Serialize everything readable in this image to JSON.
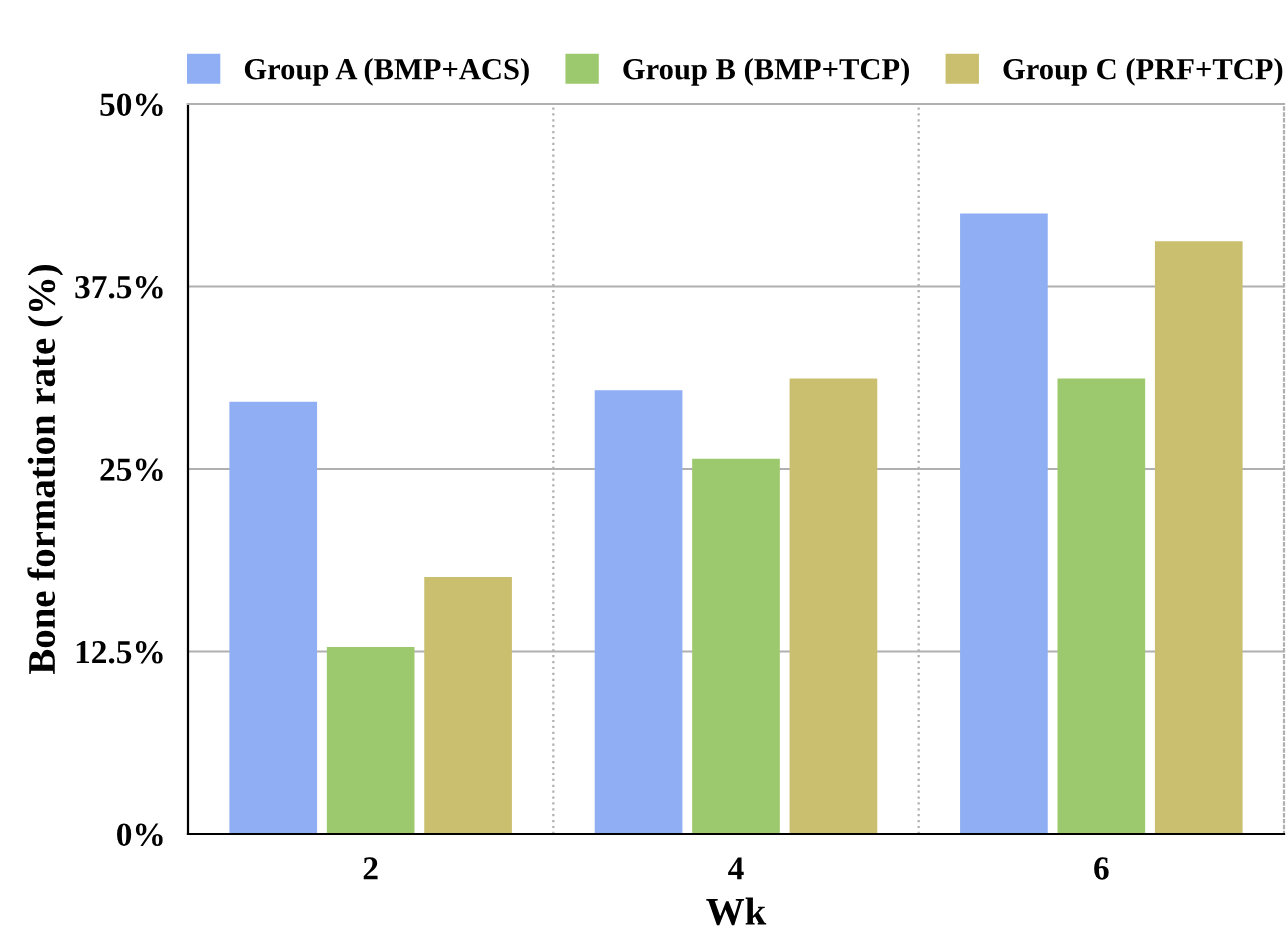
{
  "chart_data": {
    "type": "bar",
    "xlabel": "Wk",
    "ylabel": "Bone formation rate (%)",
    "categories": [
      "2",
      "4",
      "6"
    ],
    "series": [
      {
        "name": "Group A (BMP+ACS)",
        "color": "#8faef4",
        "values": [
          29.6,
          30.4,
          42.5
        ]
      },
      {
        "name": "Group B (BMP+TCP)",
        "color": "#9dc96e",
        "values": [
          12.8,
          25.7,
          31.2
        ]
      },
      {
        "name": "Group C (PRF+TCP)",
        "color": "#cabf6e",
        "values": [
          17.6,
          31.2,
          40.6
        ]
      }
    ],
    "ylim": [
      0,
      50
    ],
    "yticks": [
      {
        "value": 0,
        "label": "0%"
      },
      {
        "value": 12.5,
        "label": "12.5%"
      },
      {
        "value": 25,
        "label": "25%"
      },
      {
        "value": 37.5,
        "label": "37.5%"
      },
      {
        "value": 50,
        "label": "50%"
      }
    ],
    "grid": true,
    "legend": "top"
  }
}
